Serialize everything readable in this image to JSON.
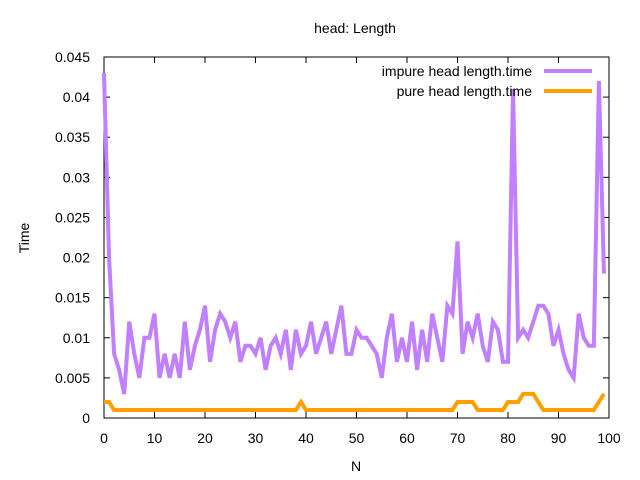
{
  "chart_data": {
    "type": "line",
    "title": "head: Length",
    "xlabel": "N",
    "ylabel": "Time",
    "xlim": [
      0,
      100
    ],
    "ylim": [
      0,
      0.045
    ],
    "x_ticks": [
      "0",
      "10",
      "20",
      "30",
      "40",
      "50",
      "60",
      "70",
      "80",
      "90",
      "100"
    ],
    "y_ticks": [
      "0",
      "0.005",
      "0.01",
      "0.015",
      "0.02",
      "0.025",
      "0.03",
      "0.035",
      "0.04",
      "0.045"
    ],
    "grid": false,
    "legend_position": "top-right",
    "series": [
      {
        "name": "impure head length.time",
        "color": "#c080ff",
        "x": [
          0,
          1,
          2,
          3,
          4,
          5,
          6,
          7,
          8,
          9,
          10,
          11,
          12,
          13,
          14,
          15,
          16,
          17,
          18,
          19,
          20,
          21,
          22,
          23,
          24,
          25,
          26,
          27,
          28,
          29,
          30,
          31,
          32,
          33,
          34,
          35,
          36,
          37,
          38,
          39,
          40,
          41,
          42,
          43,
          44,
          45,
          46,
          47,
          48,
          49,
          50,
          51,
          52,
          53,
          54,
          55,
          56,
          57,
          58,
          59,
          60,
          61,
          62,
          63,
          64,
          65,
          66,
          67,
          68,
          69,
          70,
          71,
          72,
          73,
          74,
          75,
          76,
          77,
          78,
          79,
          80,
          81,
          82,
          83,
          84,
          85,
          86,
          87,
          88,
          89,
          90,
          91,
          92,
          93,
          94,
          95,
          96,
          97,
          98,
          99
        ],
        "values": [
          0.043,
          0.02,
          0.008,
          0.006,
          0.003,
          0.012,
          0.008,
          0.005,
          0.01,
          0.01,
          0.013,
          0.005,
          0.008,
          0.005,
          0.008,
          0.005,
          0.012,
          0.006,
          0.009,
          0.011,
          0.014,
          0.007,
          0.011,
          0.013,
          0.012,
          0.01,
          0.012,
          0.007,
          0.009,
          0.009,
          0.008,
          0.01,
          0.006,
          0.009,
          0.01,
          0.008,
          0.011,
          0.006,
          0.011,
          0.008,
          0.009,
          0.012,
          0.008,
          0.01,
          0.012,
          0.008,
          0.011,
          0.014,
          0.008,
          0.008,
          0.011,
          0.01,
          0.01,
          0.009,
          0.008,
          0.005,
          0.01,
          0.013,
          0.007,
          0.01,
          0.007,
          0.012,
          0.006,
          0.011,
          0.007,
          0.013,
          0.01,
          0.007,
          0.014,
          0.013,
          0.022,
          0.008,
          0.012,
          0.01,
          0.013,
          0.009,
          0.007,
          0.012,
          0.011,
          0.007,
          0.007,
          0.041,
          0.01,
          0.011,
          0.01,
          0.012,
          0.014,
          0.014,
          0.013,
          0.009,
          0.011,
          0.008,
          0.006,
          0.005,
          0.013,
          0.01,
          0.009,
          0.009,
          0.042,
          0.018
        ]
      },
      {
        "name": "pure head length.time",
        "color": "#ffa000",
        "x": [
          0,
          1,
          2,
          3,
          4,
          5,
          6,
          7,
          8,
          9,
          10,
          11,
          12,
          13,
          14,
          15,
          16,
          17,
          18,
          19,
          20,
          21,
          22,
          23,
          24,
          25,
          26,
          27,
          28,
          29,
          30,
          31,
          32,
          33,
          34,
          35,
          36,
          37,
          38,
          39,
          40,
          41,
          42,
          43,
          44,
          45,
          46,
          47,
          48,
          49,
          50,
          51,
          52,
          53,
          54,
          55,
          56,
          57,
          58,
          59,
          60,
          61,
          62,
          63,
          64,
          65,
          66,
          67,
          68,
          69,
          70,
          71,
          72,
          73,
          74,
          75,
          76,
          77,
          78,
          79,
          80,
          81,
          82,
          83,
          84,
          85,
          86,
          87,
          88,
          89,
          90,
          91,
          92,
          93,
          94,
          95,
          96,
          97,
          98,
          99
        ],
        "values": [
          0.002,
          0.002,
          0.001,
          0.001,
          0.001,
          0.001,
          0.001,
          0.001,
          0.001,
          0.001,
          0.001,
          0.001,
          0.001,
          0.001,
          0.001,
          0.001,
          0.001,
          0.001,
          0.001,
          0.001,
          0.001,
          0.001,
          0.001,
          0.001,
          0.001,
          0.001,
          0.001,
          0.001,
          0.001,
          0.001,
          0.001,
          0.001,
          0.001,
          0.001,
          0.001,
          0.001,
          0.001,
          0.001,
          0.001,
          0.002,
          0.001,
          0.001,
          0.001,
          0.001,
          0.001,
          0.001,
          0.001,
          0.001,
          0.001,
          0.001,
          0.001,
          0.001,
          0.001,
          0.001,
          0.001,
          0.001,
          0.001,
          0.001,
          0.001,
          0.001,
          0.001,
          0.001,
          0.001,
          0.001,
          0.001,
          0.001,
          0.001,
          0.001,
          0.001,
          0.001,
          0.002,
          0.002,
          0.002,
          0.002,
          0.001,
          0.001,
          0.001,
          0.001,
          0.001,
          0.001,
          0.002,
          0.002,
          0.002,
          0.003,
          0.003,
          0.003,
          0.002,
          0.001,
          0.001,
          0.001,
          0.001,
          0.001,
          0.001,
          0.001,
          0.001,
          0.001,
          0.001,
          0.001,
          0.002,
          0.003
        ]
      }
    ]
  }
}
